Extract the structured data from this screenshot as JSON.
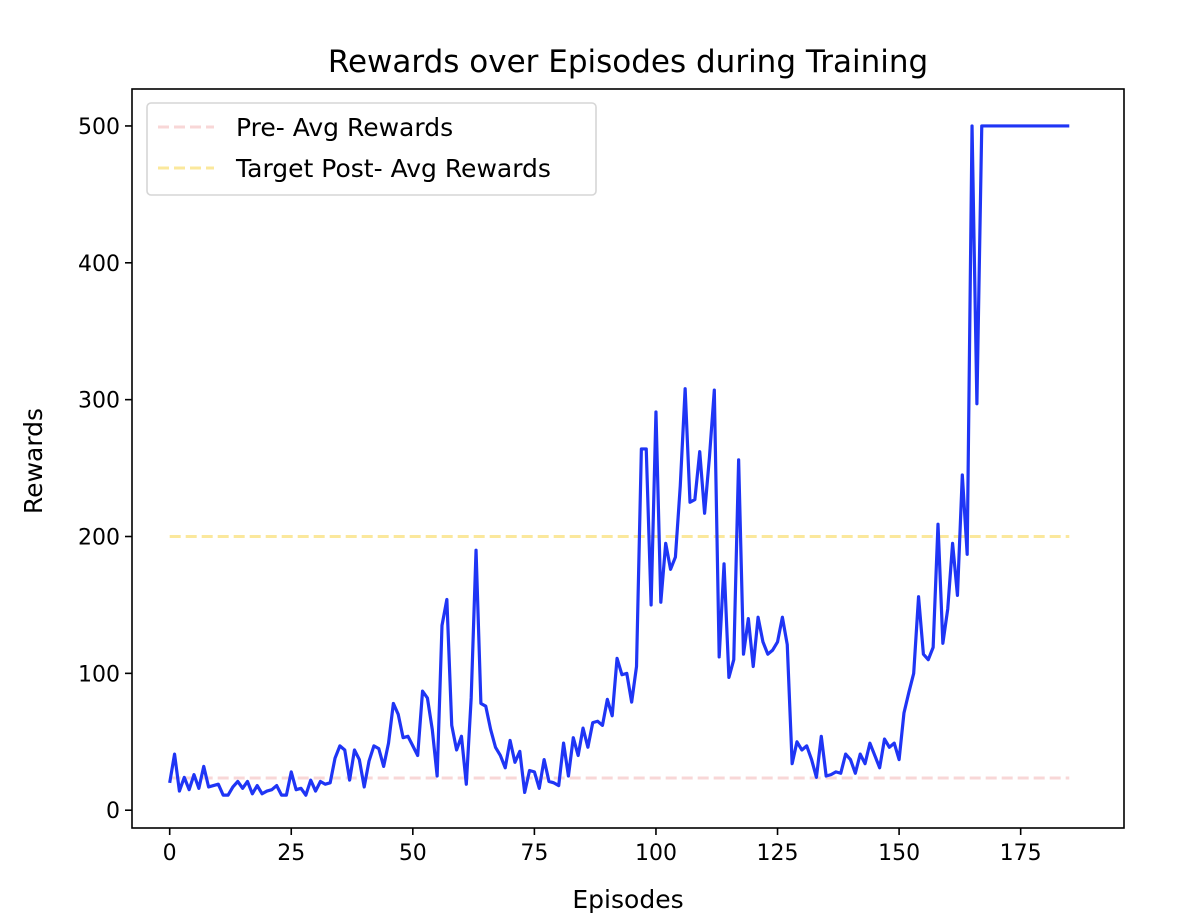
{
  "chart_data": {
    "type": "line",
    "title": "Rewards over Episodes during Training",
    "xlabel": "Episodes",
    "ylabel": "Rewards",
    "xlim": [
      -7.75,
      196.25
    ],
    "ylim": [
      -13,
      527
    ],
    "xticks": [
      0,
      25,
      50,
      75,
      100,
      125,
      150,
      175
    ],
    "yticks": [
      0,
      100,
      200,
      300,
      400,
      500
    ],
    "grid": false,
    "legend": "upper left",
    "series": [
      {
        "name": "Pre- Avg Rewards",
        "style": "dashed",
        "color": "#f8d7d7",
        "x": [
          0,
          185
        ],
        "values": [
          23.5,
          23.5
        ]
      },
      {
        "name": "Target Post- Avg Rewards",
        "style": "dashed",
        "color": "#fbe89c",
        "x": [
          0,
          185
        ],
        "values": [
          200,
          200
        ]
      },
      {
        "name": "",
        "style": "solid",
        "color": "#1f35f5",
        "x": [
          0,
          1,
          2,
          3,
          4,
          5,
          6,
          7,
          8,
          9,
          10,
          11,
          12,
          13,
          14,
          15,
          16,
          17,
          18,
          19,
          20,
          21,
          22,
          23,
          24,
          25,
          26,
          27,
          28,
          29,
          30,
          31,
          32,
          33,
          34,
          35,
          36,
          37,
          38,
          39,
          40,
          41,
          42,
          43,
          44,
          45,
          46,
          47,
          48,
          49,
          50,
          51,
          52,
          53,
          54,
          55,
          56,
          57,
          58,
          59,
          60,
          61,
          62,
          63,
          64,
          65,
          66,
          67,
          68,
          69,
          70,
          71,
          72,
          73,
          74,
          75,
          76,
          77,
          78,
          79,
          80,
          81,
          82,
          83,
          84,
          85,
          86,
          87,
          88,
          89,
          90,
          91,
          92,
          93,
          94,
          95,
          96,
          97,
          98,
          99,
          100,
          101,
          102,
          103,
          104,
          105,
          106,
          107,
          108,
          109,
          110,
          111,
          112,
          113,
          114,
          115,
          116,
          117,
          118,
          119,
          120,
          121,
          122,
          123,
          124,
          125,
          126,
          127,
          128,
          129,
          130,
          131,
          132,
          133,
          134,
          135,
          136,
          137,
          138,
          139,
          140,
          141,
          142,
          143,
          144,
          145,
          146,
          147,
          148,
          149,
          150,
          151,
          152,
          153,
          154,
          155,
          156,
          157,
          158,
          159,
          160,
          161,
          162,
          163,
          164,
          165,
          166,
          167,
          168,
          169,
          170,
          171,
          172,
          173,
          174,
          175,
          176,
          177,
          178,
          179,
          180,
          181,
          182,
          183,
          184,
          185
        ],
        "values": [
          20,
          41,
          14,
          24,
          15,
          26,
          16,
          32,
          17,
          18,
          19,
          11,
          11,
          17,
          21,
          16,
          21,
          12,
          18,
          12,
          14,
          15,
          18,
          11,
          11,
          28,
          15,
          16,
          11,
          22,
          14,
          21,
          19,
          20,
          38,
          47,
          44,
          22,
          44,
          37,
          17,
          36,
          47,
          45,
          32,
          49,
          78,
          70,
          53,
          54,
          47,
          40,
          87,
          82,
          59,
          25,
          135,
          154,
          62,
          44,
          54,
          19,
          82,
          190,
          78,
          76,
          59,
          46,
          40,
          31,
          51,
          35,
          43,
          13,
          29,
          28,
          16,
          37,
          21,
          20,
          18,
          49,
          25,
          53,
          40,
          60,
          46,
          64,
          65,
          62,
          81,
          69,
          111,
          99,
          100,
          79,
          105,
          264,
          264,
          150,
          291,
          152,
          195,
          176,
          185,
          237,
          308,
          225,
          227,
          262,
          217,
          258,
          307,
          112,
          180,
          97,
          110,
          256,
          114,
          140,
          105,
          141,
          123,
          114,
          117,
          123,
          141,
          121,
          34,
          50,
          44,
          47,
          37,
          24,
          54,
          25,
          26,
          28,
          27,
          41,
          37,
          27,
          41,
          34,
          49,
          40,
          31,
          52,
          46,
          49,
          37,
          71,
          86,
          100,
          156,
          114,
          110,
          119,
          209,
          122,
          147,
          195,
          157,
          245,
          187,
          500,
          297,
          500,
          500,
          500,
          500,
          500,
          500,
          500,
          500,
          500,
          500,
          500,
          500,
          500,
          500,
          500,
          500,
          500,
          500,
          500
        ]
      }
    ]
  }
}
